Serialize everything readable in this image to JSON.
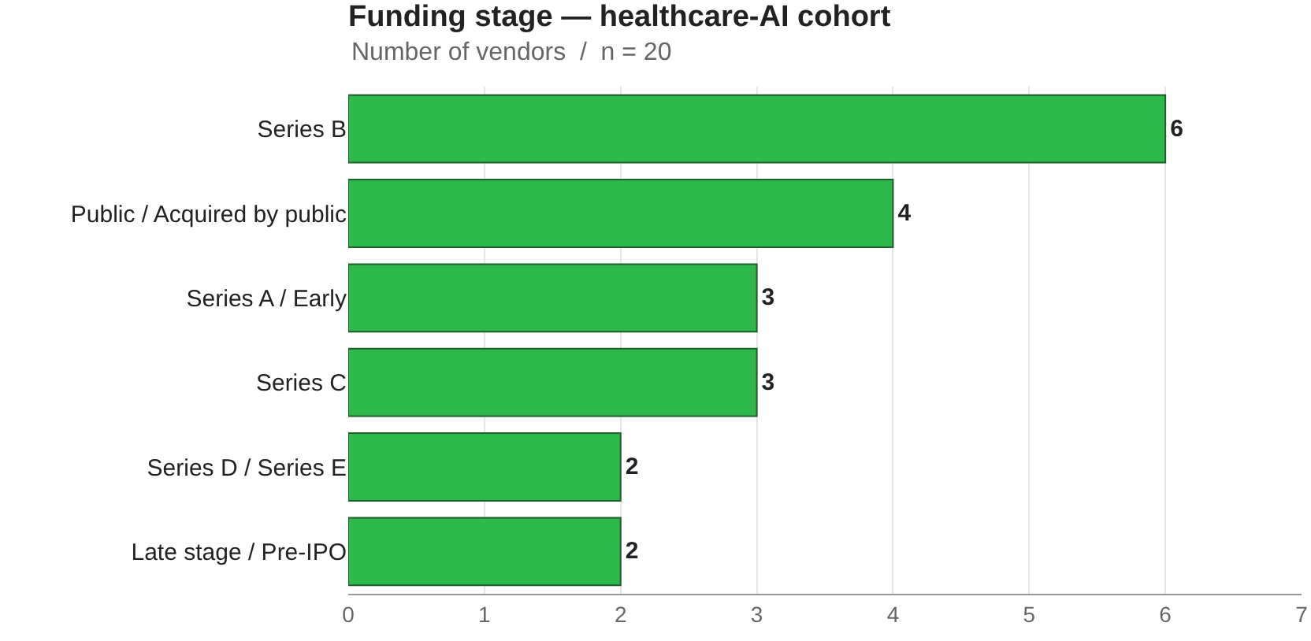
{
  "chart_data": {
    "type": "bar",
    "orientation": "horizontal",
    "title": "Funding stage — healthcare-AI cohort",
    "subtitle": "Number of vendors  /  n = 20",
    "categories": [
      "Series B",
      "Public / Acquired by public",
      "Series A / Early",
      "Series C",
      "Series D / Series E",
      "Late stage / Pre-IPO"
    ],
    "values": [
      6,
      4,
      3,
      3,
      2,
      2
    ],
    "color": "#2db84a",
    "xlim": [
      0,
      7
    ],
    "xticks": [
      0,
      1,
      2,
      3,
      4,
      5,
      6,
      7
    ],
    "grid": "x",
    "data_labels": true,
    "legend": false
  }
}
